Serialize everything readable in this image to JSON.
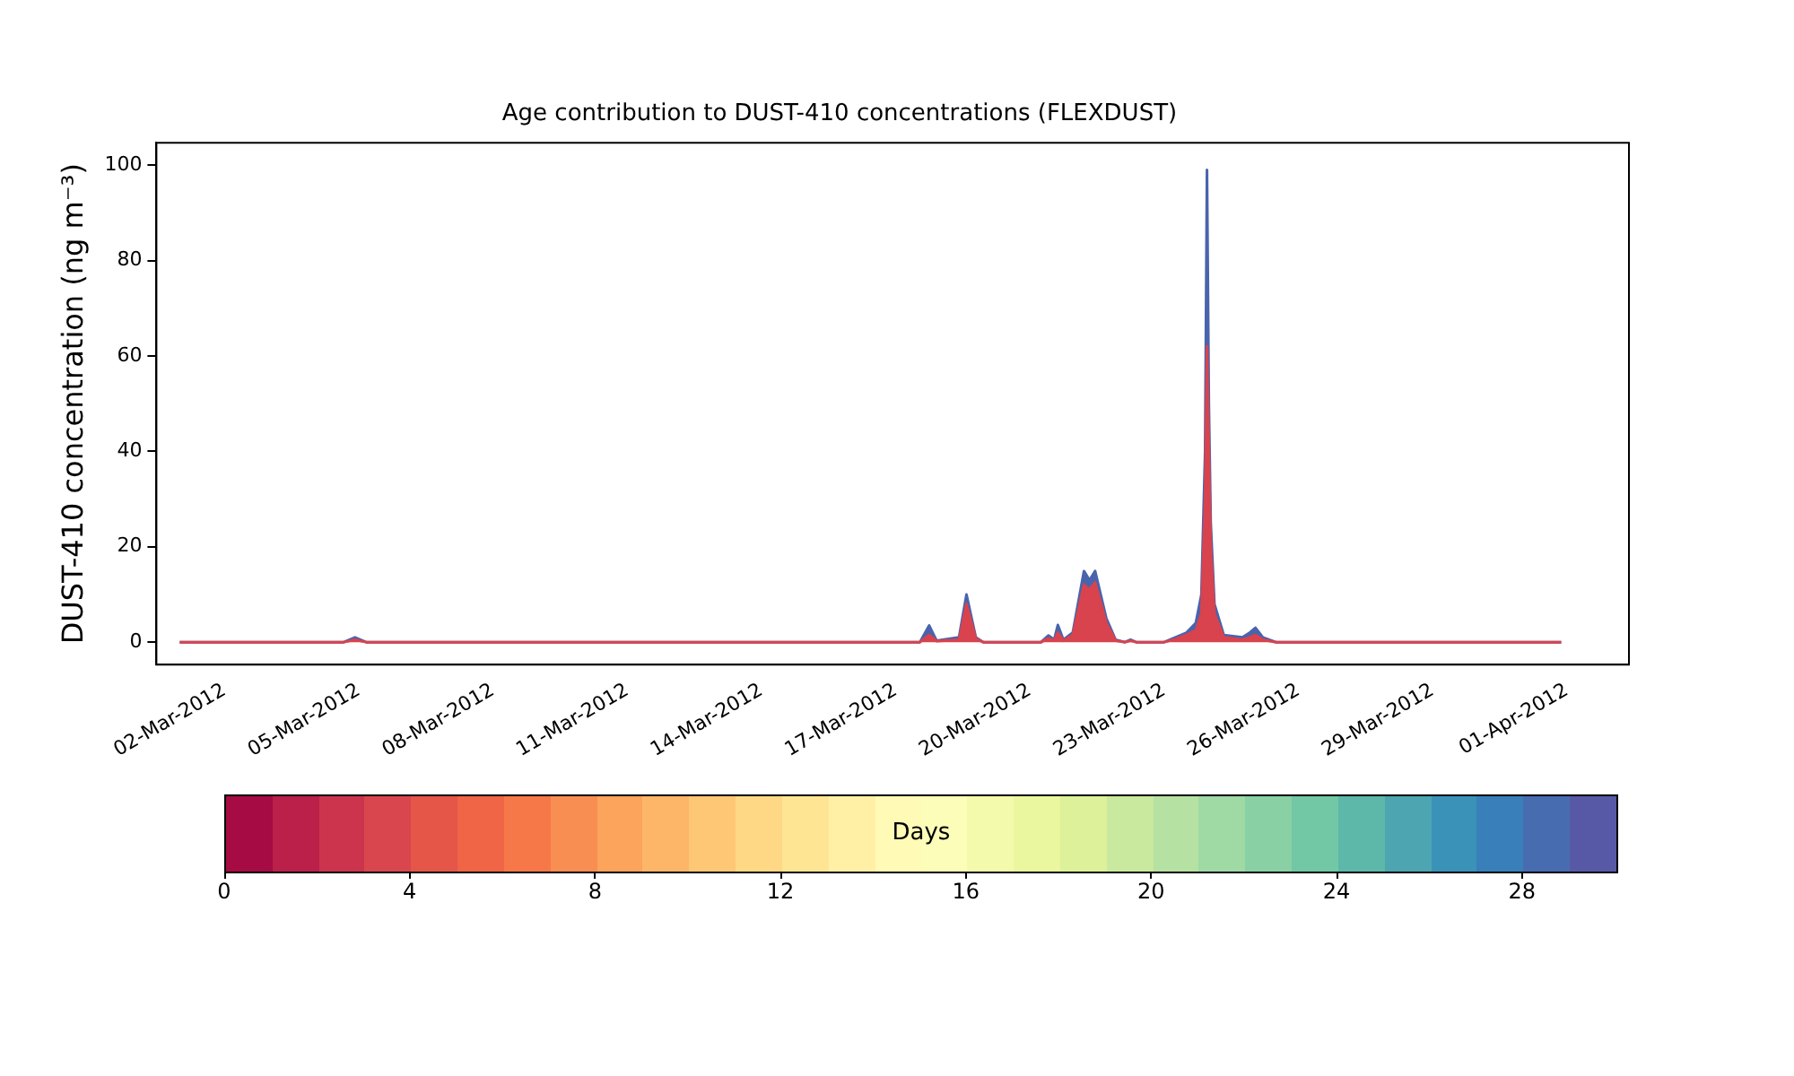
{
  "chart_data": {
    "type": "area",
    "stacked": true,
    "title": "Age contribution to DUST-410 concentrations (FLEXDUST)",
    "ylabel": "DUST-410 concentration (ng m⁻³)",
    "clabel": "Days",
    "clim": [
      0,
      30
    ],
    "cticks": [
      0,
      4,
      8,
      12,
      16,
      20,
      24,
      28
    ],
    "x": [
      "2012-03-01T00:00",
      "2012-03-04T16:00",
      "2012-03-04T22:00",
      "2012-03-05T04:00",
      "2012-03-17T13:00",
      "2012-03-17T18:00",
      "2012-03-17T22:00",
      "2012-03-18T10:00",
      "2012-03-18T14:00",
      "2012-03-18T19:00",
      "2012-03-18T23:00",
      "2012-03-20T06:00",
      "2012-03-20T10:00",
      "2012-03-20T13:00",
      "2012-03-20T15:00",
      "2012-03-20T18:00",
      "2012-03-20T23:00",
      "2012-03-21T05:00",
      "2012-03-21T08:00",
      "2012-03-21T11:00",
      "2012-03-21T17:00",
      "2012-03-21T22:00",
      "2012-03-22T03:00",
      "2012-03-22T06:00",
      "2012-03-22T09:00",
      "2012-03-23T00:00",
      "2012-03-23T06:00",
      "2012-03-23T12:00",
      "2012-03-23T17:00",
      "2012-03-23T20:00",
      "2012-03-23T22:00",
      "2012-03-23T23:00",
      "2012-03-24T00:00",
      "2012-03-24T01:00",
      "2012-03-24T03:00",
      "2012-03-24T08:00",
      "2012-03-24T18:00",
      "2012-03-24T22:00",
      "2012-03-25T01:00",
      "2012-03-25T05:00",
      "2012-03-25T12:00",
      "2012-03-31T21:00"
    ],
    "series": [
      {
        "color": "#d8434d",
        "values": [
          0,
          0,
          0.5,
          0,
          0,
          1.5,
          0.2,
          0.5,
          8,
          0.7,
          0,
          0,
          0.8,
          0.3,
          2,
          0.3,
          1.5,
          12,
          11,
          12.5,
          4,
          0.3,
          0,
          0.3,
          0,
          0,
          0.6,
          1.5,
          2.5,
          6,
          30,
          62,
          40,
          20,
          6,
          1,
          0.5,
          1,
          1.5,
          0.5,
          0,
          0
        ]
      },
      {
        "color": "#4a64ac",
        "values": [
          0,
          0,
          0.5,
          0,
          0,
          2,
          0.1,
          0.5,
          2,
          0.3,
          0,
          0,
          0.6,
          0.2,
          1.6,
          0.2,
          0.5,
          2.9,
          2,
          2.4,
          1,
          0.2,
          0,
          0.2,
          0,
          0,
          0.4,
          0.5,
          1.5,
          4,
          10,
          37,
          10,
          5,
          2,
          0.5,
          0.5,
          1,
          1.5,
          0.5,
          0,
          0
        ]
      }
    ],
    "xlim": [
      "2012-02-29T11:30",
      "2012-04-02T09:20"
    ],
    "xticks": [
      {
        "value": "2012-03-02",
        "label": "02-Mar-2012"
      },
      {
        "value": "2012-03-05",
        "label": "05-Mar-2012"
      },
      {
        "value": "2012-03-08",
        "label": "08-Mar-2012"
      },
      {
        "value": "2012-03-11",
        "label": "11-Mar-2012"
      },
      {
        "value": "2012-03-14",
        "label": "14-Mar-2012"
      },
      {
        "value": "2012-03-17",
        "label": "17-Mar-2012"
      },
      {
        "value": "2012-03-20",
        "label": "20-Mar-2012"
      },
      {
        "value": "2012-03-23",
        "label": "23-Mar-2012"
      },
      {
        "value": "2012-03-26",
        "label": "26-Mar-2012"
      },
      {
        "value": "2012-03-29",
        "label": "29-Mar-2012"
      },
      {
        "value": "2012-04-01",
        "label": "01-Apr-2012"
      }
    ],
    "ylim": [
      -4.7,
      104.7
    ],
    "yticks": [
      0,
      20,
      40,
      60,
      80,
      100
    ],
    "grid": false,
    "legend": false
  }
}
